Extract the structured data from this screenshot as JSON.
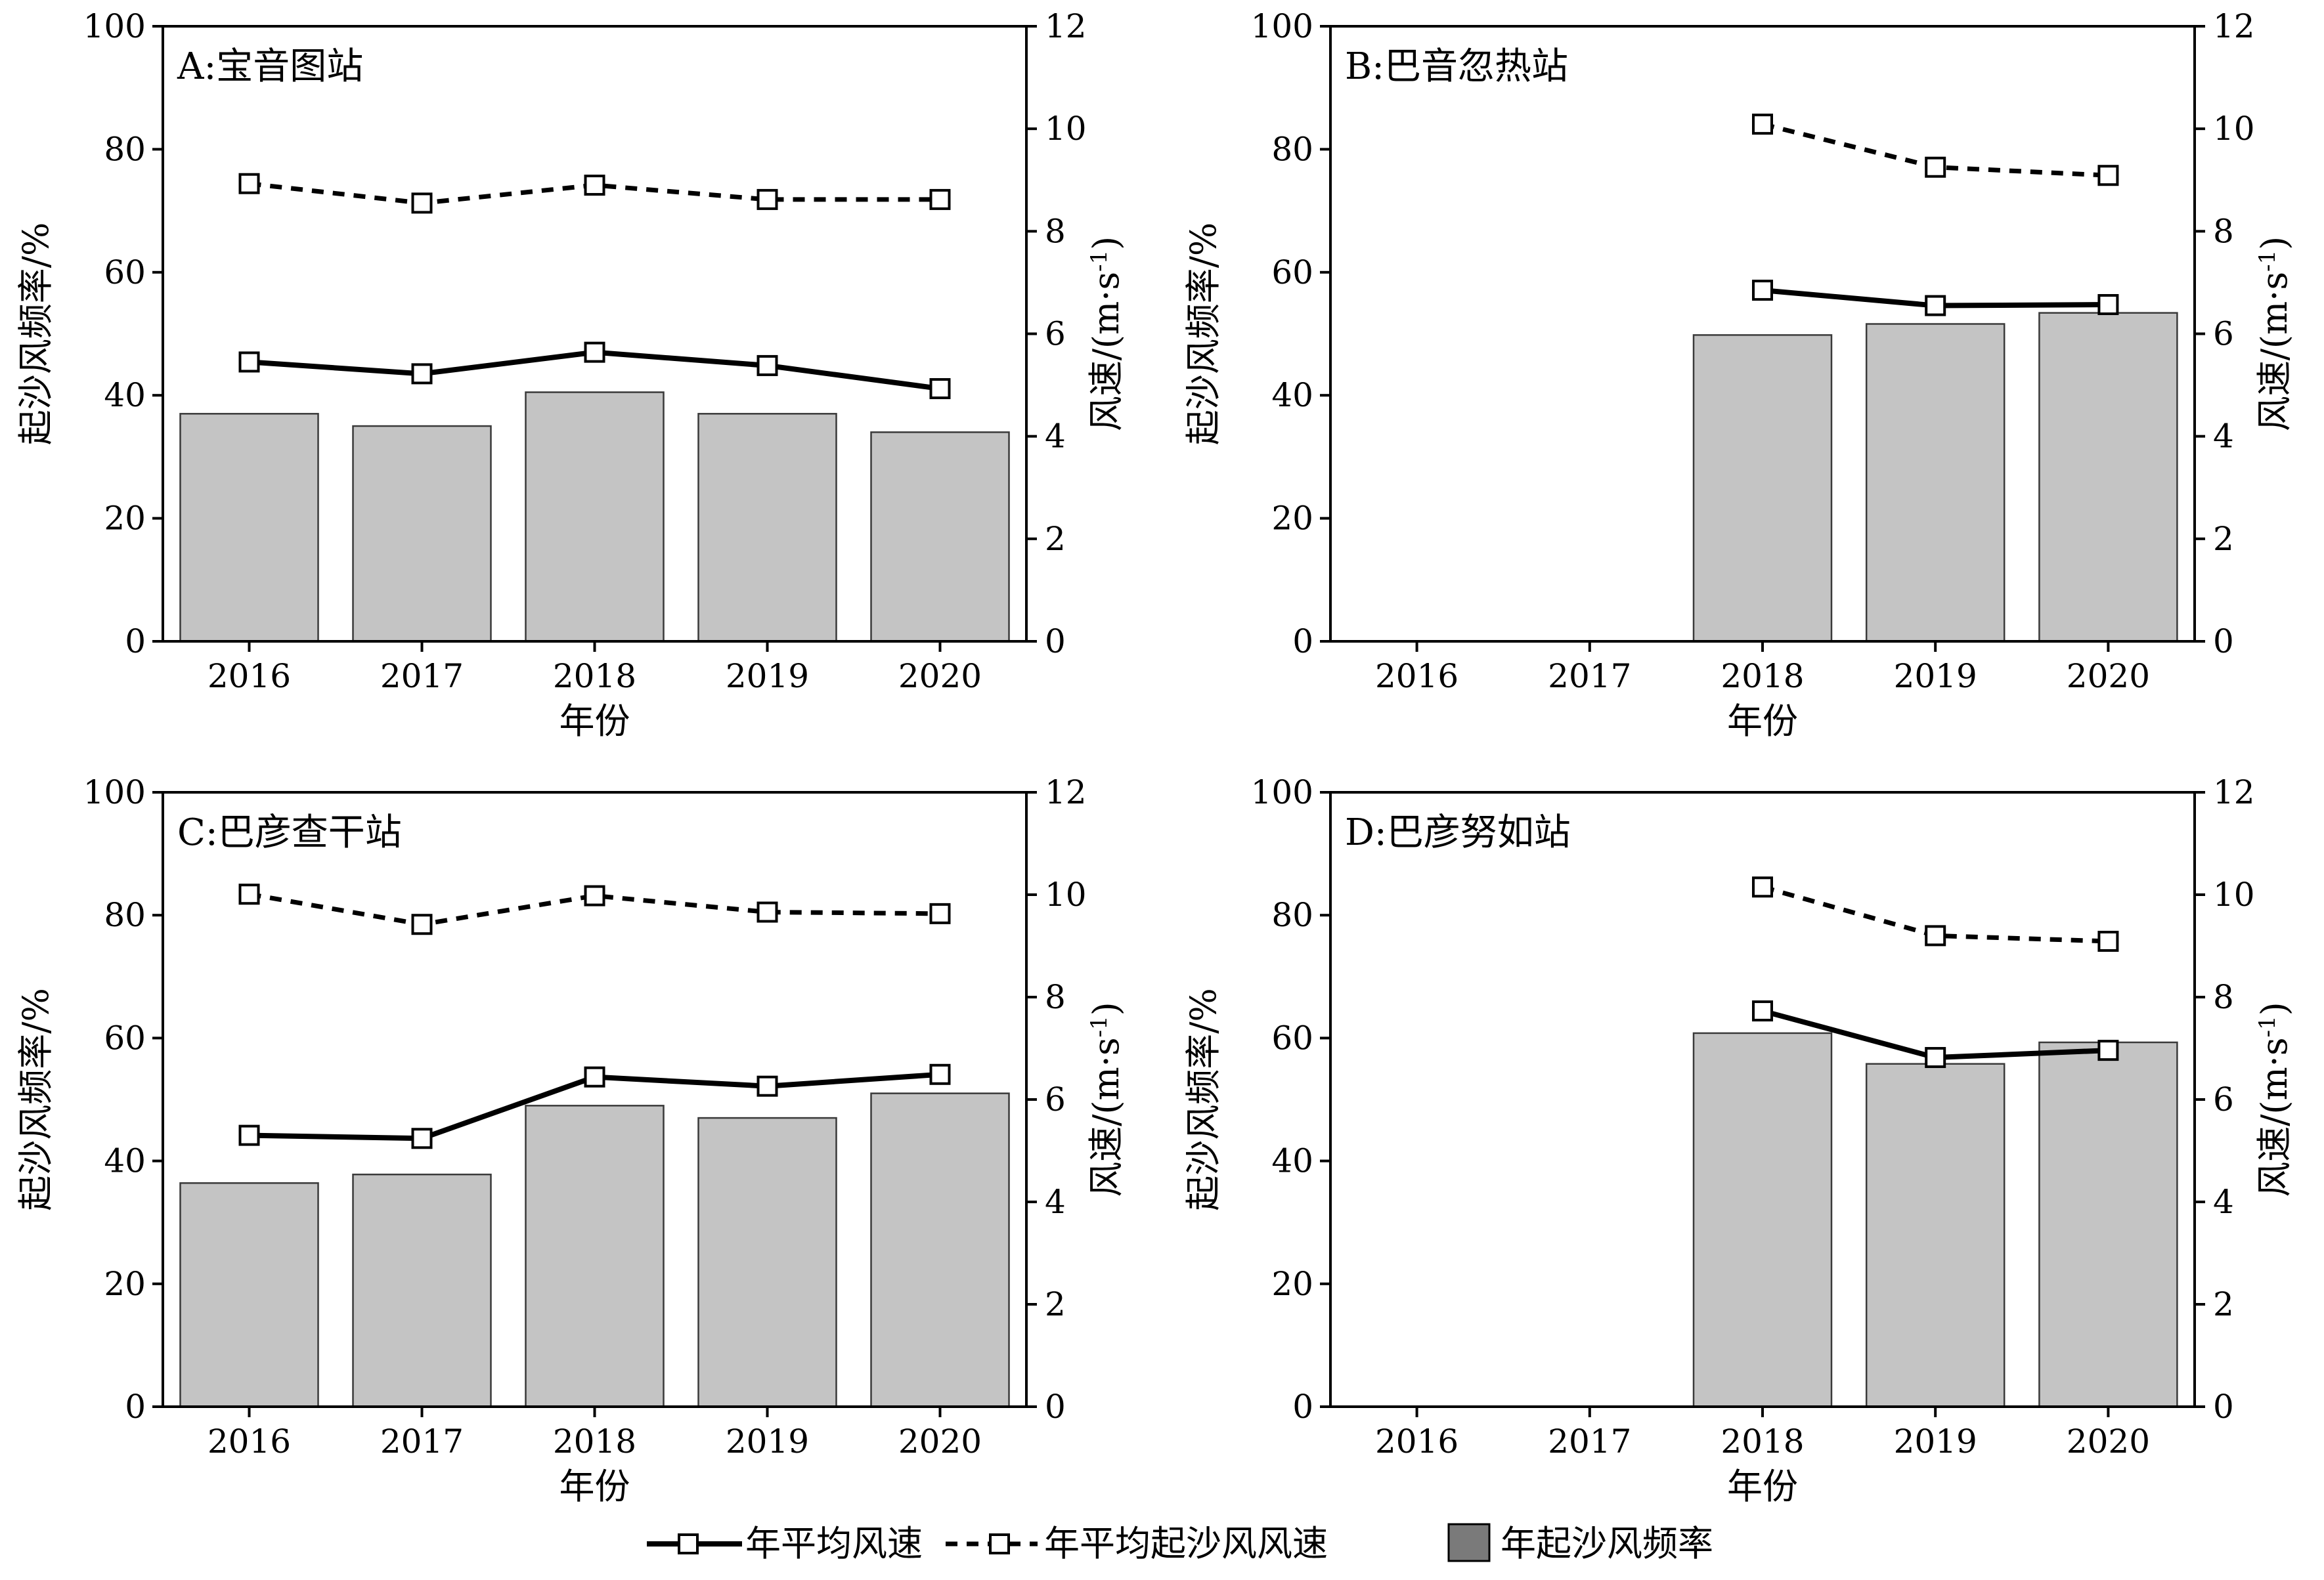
{
  "chart_data": [
    {
      "type": "bar",
      "panel": "A",
      "title": "A:宝音图站",
      "categories": [
        "2016",
        "2017",
        "2018",
        "2019",
        "2020"
      ],
      "xlabel": "年份",
      "ylabel": "起沙风频率/%",
      "ylabel_right": "风速/(m·s-1)",
      "ylim": [
        0,
        100
      ],
      "ylim_right": [
        0,
        12
      ],
      "yticks": [
        "0",
        "20",
        "40",
        "60",
        "80",
        "100"
      ],
      "yticks_right": [
        "0",
        "2",
        "4",
        "6",
        "8",
        "10",
        "12"
      ],
      "bars": {
        "name": "年起沙风频率",
        "values": [
          37.0,
          35.0,
          40.5,
          37.0,
          34.0
        ]
      },
      "series": [
        {
          "name": "年平均风速",
          "axis": "right",
          "values": [
            5.45,
            5.22,
            5.64,
            5.38,
            4.93
          ]
        },
        {
          "name": "年平均起沙风风速",
          "axis": "right",
          "values": [
            8.93,
            8.55,
            8.9,
            8.62,
            8.62
          ]
        }
      ]
    },
    {
      "type": "bar",
      "panel": "B",
      "title": "B:巴音忽热站",
      "categories": [
        "2016",
        "2017",
        "2018",
        "2019",
        "2020"
      ],
      "xlabel": "年份",
      "ylabel": "起沙风频率/%",
      "ylabel_right": "风速/(m·s-1)",
      "ylim": [
        0,
        100
      ],
      "ylim_right": [
        0,
        12
      ],
      "yticks": [
        "0",
        "20",
        "40",
        "60",
        "80",
        "100"
      ],
      "yticks_right": [
        "0",
        "2",
        "4",
        "6",
        "8",
        "10",
        "12"
      ],
      "bars": {
        "name": "年起沙风频率",
        "values": [
          null,
          null,
          49.8,
          51.6,
          53.4
        ]
      },
      "series": [
        {
          "name": "年平均风速",
          "axis": "right",
          "values": [
            null,
            null,
            6.85,
            6.55,
            6.57
          ]
        },
        {
          "name": "年平均起沙风风速",
          "axis": "right",
          "values": [
            null,
            null,
            10.09,
            9.25,
            9.09
          ]
        }
      ]
    },
    {
      "type": "bar",
      "panel": "C",
      "title": "C:巴彦查干站",
      "categories": [
        "2016",
        "2017",
        "2018",
        "2019",
        "2020"
      ],
      "xlabel": "年份",
      "ylabel": "起沙风频率/%",
      "ylabel_right": "风速/(m·s-1)",
      "ylim": [
        0,
        100
      ],
      "ylim_right": [
        0,
        12
      ],
      "yticks": [
        "0",
        "20",
        "40",
        "60",
        "80",
        "100"
      ],
      "yticks_right": [
        "0",
        "2",
        "4",
        "6",
        "8",
        "10",
        "12"
      ],
      "bars": {
        "name": "年起沙风频率",
        "values": [
          36.4,
          37.8,
          49.0,
          47.0,
          51.0
        ]
      },
      "series": [
        {
          "name": "年平均风速",
          "axis": "right",
          "values": [
            5.3,
            5.24,
            6.44,
            6.26,
            6.49
          ]
        },
        {
          "name": "年平均起沙风风速",
          "axis": "right",
          "values": [
            10.01,
            9.42,
            9.98,
            9.66,
            9.63
          ]
        }
      ]
    },
    {
      "type": "bar",
      "panel": "D",
      "title": "D:巴彦努如站",
      "categories": [
        "2016",
        "2017",
        "2018",
        "2019",
        "2020"
      ],
      "xlabel": "年份",
      "ylabel": "起沙风频率/%",
      "ylabel_right": "风速/(m·s-1)",
      "ylim": [
        0,
        100
      ],
      "ylim_right": [
        0,
        12
      ],
      "yticks": [
        "0",
        "20",
        "40",
        "60",
        "80",
        "100"
      ],
      "yticks_right": [
        "0",
        "2",
        "4",
        "6",
        "8",
        "10",
        "12"
      ],
      "bars": {
        "name": "年起沙风频率",
        "values": [
          null,
          null,
          60.8,
          55.8,
          59.3
        ]
      },
      "series": [
        {
          "name": "年平均风速",
          "axis": "right",
          "values": [
            null,
            null,
            7.73,
            6.82,
            6.96
          ]
        },
        {
          "name": "年平均起沙风风速",
          "axis": "right",
          "values": [
            null,
            null,
            10.15,
            9.2,
            9.09
          ]
        }
      ]
    }
  ],
  "legend": {
    "placement": "bottom-center",
    "items": [
      {
        "name": "年平均风速",
        "style": "solid-line-square-marker"
      },
      {
        "name": "年平均起沙风风速",
        "style": "dashed-line-square-marker"
      },
      {
        "name": "年起沙风频率",
        "style": "dark-gray-box"
      }
    ]
  },
  "colors": {
    "bar_fill": "#c4c4c4",
    "bar_edge": "#3a3a3a",
    "line": "#000000",
    "marker_fill": "#ffffff",
    "legend_box": "#7a7a7a"
  }
}
